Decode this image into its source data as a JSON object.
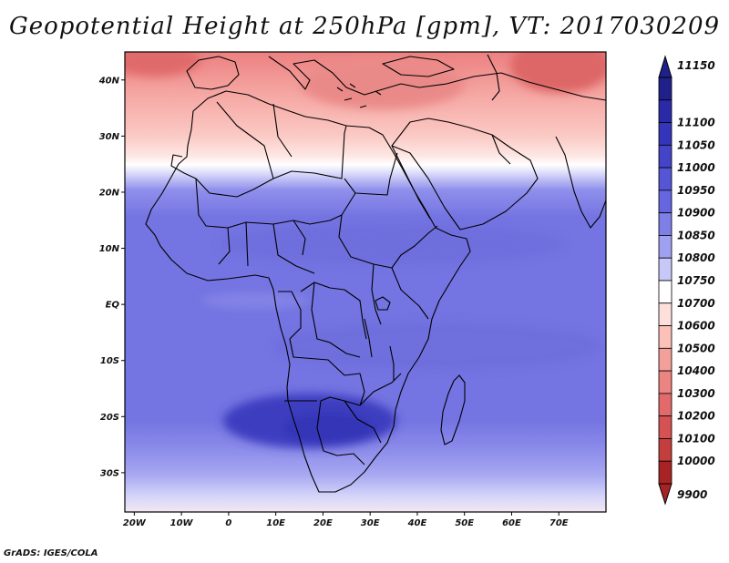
{
  "title": "Geopotential Height at 250hPa [gpm], VT: 2017030209",
  "footer": "GrADS: IGES/COLA",
  "map": {
    "lon_range": [
      -22,
      80
    ],
    "lat_range": [
      -37,
      45
    ],
    "lat_ticks": [
      {
        "value": 40,
        "label": "40N"
      },
      {
        "value": 30,
        "label": "30N"
      },
      {
        "value": 20,
        "label": "20N"
      },
      {
        "value": 10,
        "label": "10N"
      },
      {
        "value": 0,
        "label": "EQ"
      },
      {
        "value": -10,
        "label": "10S"
      },
      {
        "value": -20,
        "label": "20S"
      },
      {
        "value": -30,
        "label": "30S"
      }
    ],
    "lon_ticks": [
      {
        "value": -20,
        "label": "20W"
      },
      {
        "value": -10,
        "label": "10W"
      },
      {
        "value": 0,
        "label": "0"
      },
      {
        "value": 10,
        "label": "10E"
      },
      {
        "value": 20,
        "label": "20E"
      },
      {
        "value": 30,
        "label": "30E"
      },
      {
        "value": 40,
        "label": "40E"
      },
      {
        "value": 50,
        "label": "50E"
      },
      {
        "value": 60,
        "label": "60E"
      },
      {
        "value": 70,
        "label": "70E"
      }
    ]
  },
  "colorbar": {
    "levels": [
      "11150",
      "11100",
      "11050",
      "11000",
      "10950",
      "10900",
      "10850",
      "10800",
      "10750",
      "10700",
      "10600",
      "10500",
      "10400",
      "10300",
      "10200",
      "10100",
      "10000",
      "9900"
    ],
    "colors": [
      "#20208a",
      "#2a2aa8",
      "#3535bb",
      "#4444c8",
      "#5555d6",
      "#6666e0",
      "#7f7fe8",
      "#a0a0f0",
      "#c8c8f8",
      "#ffffff",
      "#fde0dc",
      "#fbc0b8",
      "#f4a09a",
      "#ec8482",
      "#e26a6a",
      "#d55252",
      "#c43e3e",
      "#a82424"
    ]
  }
}
